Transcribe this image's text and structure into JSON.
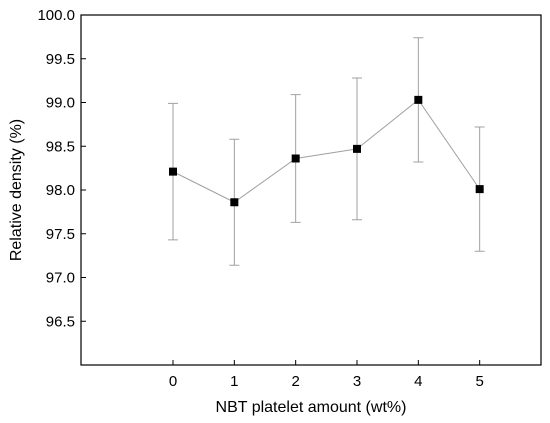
{
  "chart_data": {
    "type": "scatter",
    "xlabel": "NBT platelet amount (wt%)",
    "ylabel": "Relative density (%)",
    "xlim": [
      -1.5,
      6.0
    ],
    "ylim": [
      96.0,
      100.0
    ],
    "x_ticks": [
      0,
      1,
      2,
      3,
      4,
      5
    ],
    "x_tick_labels": [
      "0",
      "1",
      "2",
      "3",
      "4",
      "5"
    ],
    "y_ticks": [
      96.5,
      97.0,
      97.5,
      98.0,
      98.5,
      99.0,
      99.5,
      100.0
    ],
    "y_tick_labels": [
      "96.5",
      "97.0",
      "97.5",
      "98.0",
      "98.5",
      "99.0",
      "99.5",
      "100.0"
    ],
    "grid": false,
    "marker": "square",
    "connect_points": true,
    "series": [
      {
        "x": [
          0,
          1,
          2,
          3,
          4,
          5
        ],
        "y": [
          98.21,
          97.86,
          98.36,
          98.47,
          99.03,
          98.01
        ],
        "error": [
          0.78,
          0.72,
          0.73,
          0.81,
          0.71,
          0.71
        ]
      }
    ],
    "colors": {
      "marker": "#000000",
      "line": "#a0a0a0",
      "errorbar": "#a0a0a0",
      "axis": "#000000"
    }
  }
}
